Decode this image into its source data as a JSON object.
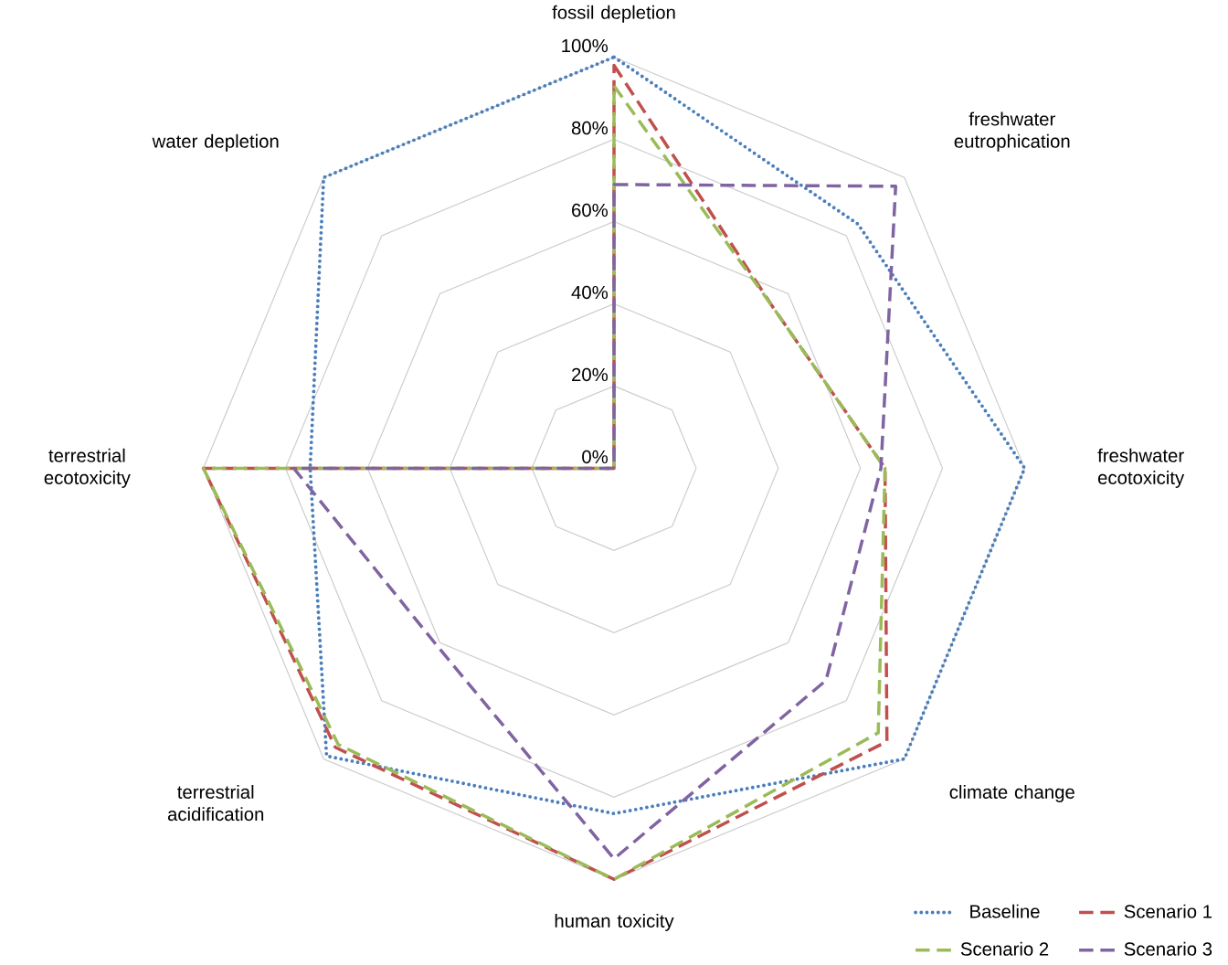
{
  "chart_data": {
    "type": "radar",
    "categories": [
      "fossil depletion",
      "freshwater eutrophication",
      "freshwater ecotoxicity",
      "climate change",
      "human toxicity",
      "terrestrial acidification",
      "terrestrial ecotoxicity",
      "water depletion"
    ],
    "ylim": [
      0,
      100
    ],
    "yticks": [
      {
        "value": 0,
        "label": "0%"
      },
      {
        "value": 20,
        "label": "20%"
      },
      {
        "value": 40,
        "label": "40%"
      },
      {
        "value": 60,
        "label": "60%"
      },
      {
        "value": 80,
        "label": "80%"
      },
      {
        "value": 100,
        "label": "100%"
      }
    ],
    "grid": true,
    "legend": "bottom right",
    "marker": "none",
    "series": [
      {
        "name": "Baseline",
        "color": "#4a7ebb",
        "line_style": "dotted",
        "values": [
          100,
          84,
          100,
          100,
          84,
          99,
          74,
          100
        ]
      },
      {
        "name": "Scenario 1",
        "color": "#c0504d",
        "line_style": "dashed",
        "values": [
          98,
          55,
          66,
          94,
          100,
          96,
          100,
          0
        ]
      },
      {
        "name": "Scenario 2",
        "color": "#9bbb59",
        "line_style": "dashed",
        "values": [
          93,
          55,
          66,
          91,
          100,
          95,
          100,
          0
        ]
      },
      {
        "name": "Scenario 3",
        "color": "#8064a2",
        "line_style": "dashed",
        "values": [
          69,
          97,
          65,
          73,
          95,
          61,
          78,
          0
        ]
      }
    ]
  }
}
